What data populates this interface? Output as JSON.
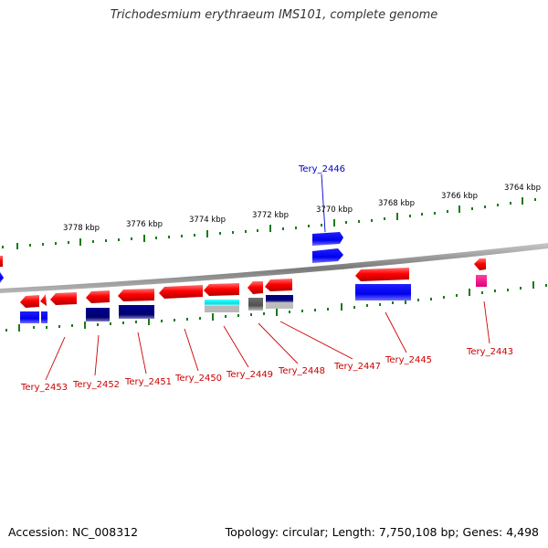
{
  "title": "Trichodesmium erythraeum IMS101, complete genome",
  "footer": {
    "accession": "Accession: NC_008312",
    "summary": "Topology: circular; Length: 7,750,108 bp; Genes: 4,498"
  },
  "scale_labels": [
    "3778 kbp",
    "3776 kbp",
    "3774 kbp",
    "3772 kbp",
    "3770 kbp",
    "3768 kbp",
    "3766 kbp",
    "3764 kbp"
  ],
  "gene_labels": [
    "Tery_2446",
    "Tery_2453",
    "Tery_2452",
    "Tery_2451",
    "Tery_2450",
    "Tery_2449",
    "Tery_2448",
    "Tery_2447",
    "Tery_2445",
    "Tery_2443"
  ],
  "colors": {
    "forward_gene": "#ff0000",
    "cog_blue": "#0000ee",
    "cog_navy": "#000080",
    "cog_cyan": "#00eeee",
    "cog_gray": "#606060",
    "cog_pink": "#ff1493",
    "label_red": "#cc0000",
    "label_blue": "#0000cc",
    "tick_green": "#1a7a1a",
    "backbone": "#8c8c8c"
  }
}
